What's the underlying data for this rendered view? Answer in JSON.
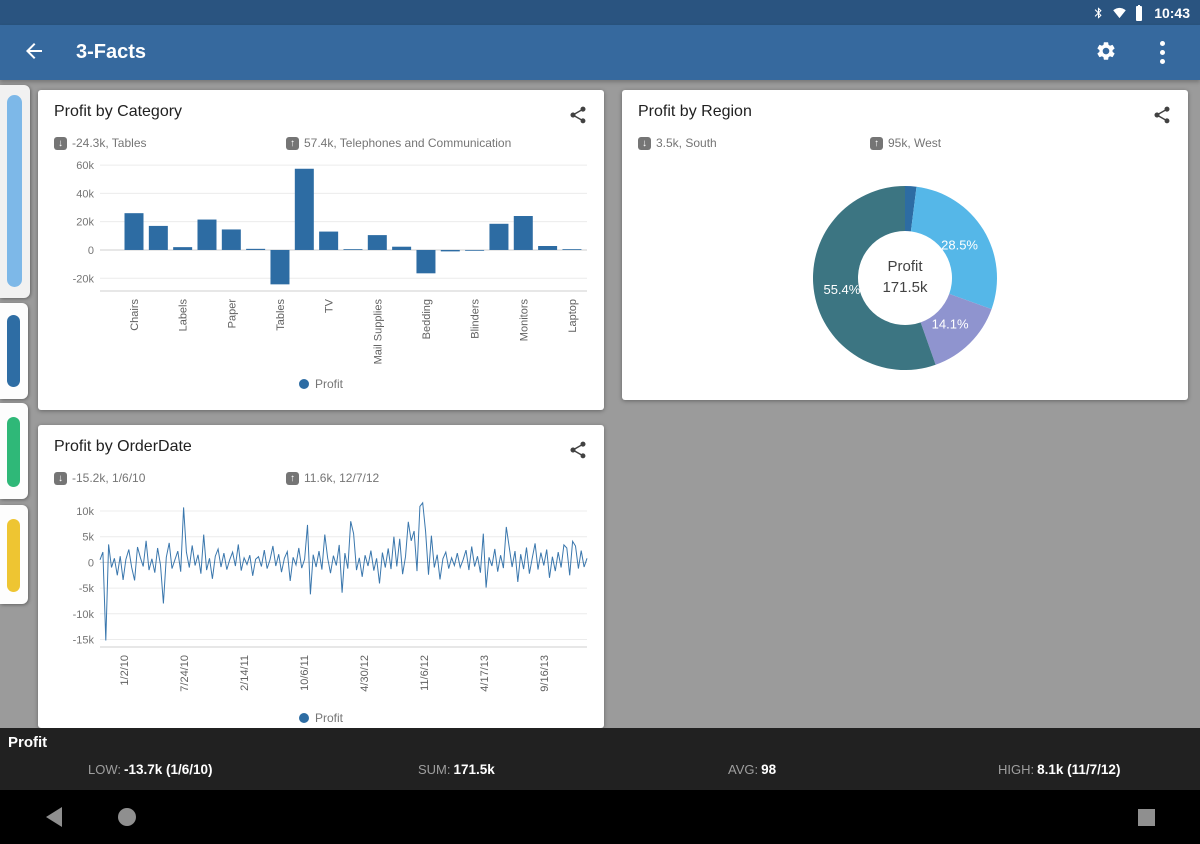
{
  "colors": {
    "primary": "#36699e",
    "primary_dark": "#2a5480",
    "background": "#9b9b9b",
    "card": "#ffffff",
    "bar": "#2d6ca3",
    "line": "#3a77ad",
    "panel": "#212121",
    "nav": "#000000",
    "sidebar_active_pill": "#7db8e8",
    "sidebar_pill_blue": "#2e6da4",
    "sidebar_pill_green": "#2fb878",
    "sidebar_pill_yellow": "#eec532",
    "donut_lightblue": "#55b7e8",
    "donut_purple": "#8f94cf",
    "donut_teal": "#3c7582"
  },
  "status_bar": {
    "time": "10:43"
  },
  "app_bar": {
    "title": "3-Facts"
  },
  "cards": [
    {
      "title": "Profit by Category",
      "low": "-24.3k, Tables",
      "high": "57.4k, Telephones and Communication",
      "legend": "Profit"
    },
    {
      "title": "Profit by Region",
      "low": "3.5k, South",
      "high": "95k, West",
      "center_label": "Profit",
      "center_value": "171.5k"
    },
    {
      "title": "Profit by OrderDate",
      "low": "-15.2k, 1/6/10",
      "high": "11.6k, 12/7/12",
      "legend": "Profit"
    }
  ],
  "summary": {
    "title": "Profit",
    "stats": [
      {
        "label": "LOW:",
        "value": "-13.7k (1/6/10)"
      },
      {
        "label": "SUM:",
        "value": "171.5k"
      },
      {
        "label": "AVG:",
        "value": "98"
      },
      {
        "label": "HIGH:",
        "value": "8.1k (11/7/12)"
      }
    ]
  },
  "chart_data": [
    {
      "type": "bar",
      "title": "Profit by Category",
      "series": "Profit",
      "unit": "k",
      "color": "#2d6ca3",
      "ylim": [
        -29,
        65
      ],
      "y_ticks": [
        {
          "v": 60,
          "label": "60k"
        },
        {
          "v": 40,
          "label": "40k"
        },
        {
          "v": 20,
          "label": "20k"
        },
        {
          "v": 0,
          "label": "0"
        },
        {
          "v": -20,
          "label": "-20k"
        }
      ],
      "bars": [
        {
          "label": "Chairs",
          "value": 26
        },
        {
          "label": "",
          "value": 17
        },
        {
          "label": "Labels",
          "value": 2
        },
        {
          "label": "",
          "value": 21.5
        },
        {
          "label": "Paper",
          "value": 14.5
        },
        {
          "label": "",
          "value": 0.8
        },
        {
          "label": "Tables",
          "value": -24.3
        },
        {
          "label": "",
          "value": 57.4
        },
        {
          "label": "TV",
          "value": 13
        },
        {
          "label": "",
          "value": 0.4
        },
        {
          "label": "Mail Supplies",
          "value": 10.5
        },
        {
          "label": "",
          "value": 2.3
        },
        {
          "label": "Bedding",
          "value": -16.5
        },
        {
          "label": "",
          "value": -1
        },
        {
          "label": "Blinders",
          "value": -0.4
        },
        {
          "label": "",
          "value": 18.5
        },
        {
          "label": "Monitors",
          "value": 24
        },
        {
          "label": "",
          "value": 2.8
        },
        {
          "label": "Laptop",
          "value": 0.2
        }
      ],
      "annotations": {
        "min": "-24.3k, Tables",
        "max": "57.4k, Telephones and Communication"
      }
    },
    {
      "type": "donut",
      "title": "Profit by Region",
      "center_label": "Profit",
      "center_value": "171.5k",
      "slices": [
        {
          "label": "",
          "pct": 2,
          "color": "#2d6ca3"
        },
        {
          "label": "28.5%",
          "pct": 28.5,
          "color": "#55b7e8"
        },
        {
          "label": "14.1%",
          "pct": 14.1,
          "color": "#8f94cf"
        },
        {
          "label": "55.4%",
          "pct": 55.4,
          "color": "#3c7582"
        }
      ],
      "annotations": {
        "min": "3.5k, South",
        "max": "95k, West"
      }
    },
    {
      "type": "line",
      "title": "Profit by OrderDate",
      "series": "Profit",
      "unit": "k",
      "color": "#3a77ad",
      "ylim": [
        -16.5,
        12.5
      ],
      "y_ticks": [
        {
          "v": 10,
          "label": "10k"
        },
        {
          "v": 5,
          "label": "5k"
        },
        {
          "v": 0,
          "label": "0"
        },
        {
          "v": -5,
          "label": "-5k"
        },
        {
          "v": -10,
          "label": "-10k"
        },
        {
          "v": -15,
          "label": "-15k"
        }
      ],
      "x_ticks": [
        "1/2/10",
        "7/24/10",
        "2/14/11",
        "10/6/11",
        "4/30/12",
        "11/6/12",
        "4/17/13",
        "9/16/13"
      ],
      "values": [
        0.5,
        2.0,
        -15.2,
        3.5,
        -1.0,
        0.8,
        -2.5,
        1.2,
        -3.4,
        0.6,
        2.5,
        -1.0,
        -3.5,
        3.0,
        1.0,
        -0.8,
        4.2,
        -1.5,
        0.7,
        -2.0,
        2.8,
        -0.5,
        -8.0,
        1.0,
        3.8,
        -1.2,
        0.5,
        2.2,
        -1.8,
        10.7,
        2.0,
        -1.0,
        3.3,
        -0.6,
        1.5,
        -2.2,
        5.4,
        -1.5,
        0.8,
        -3.2,
        1.2,
        2.6,
        -0.9,
        1.8,
        -1.4,
        0.5,
        2.0,
        -0.7,
        3.5,
        -1.6,
        0.9,
        -0.4,
        1.4,
        -2.6,
        0.6,
        1.1,
        -0.8,
        2.4,
        -1.2,
        0.5,
        3.2,
        -0.7,
        1.6,
        -1.9,
        0.8,
        2.1,
        -3.6,
        1.0,
        -0.5,
        2.8,
        -1.1,
        0.6,
        7.3,
        -6.2,
        1.5,
        -0.9,
        2.2,
        -1.4,
        5.4,
        0.8,
        -2.1,
        1.3,
        -0.6,
        3.4,
        -5.9,
        1.8,
        -1.2,
        8.0,
        5.6,
        -1.5,
        0.9,
        -2.8,
        1.4,
        -0.7,
        2.3,
        -1.6,
        0.8,
        -4.1,
        1.9,
        -1.0,
        2.7,
        -1.3,
        5.0,
        -0.8,
        4.6,
        -2.3,
        1.1,
        7.9,
        4.2,
        6.1,
        -1.7,
        10.9,
        11.6,
        6.0,
        -2.4,
        5.2,
        -1.0,
        1.5,
        -3.3,
        0.7,
        2.0,
        -1.2,
        0.9,
        -0.6,
        1.8,
        -1.0,
        0.5,
        2.4,
        -1.5,
        3.1,
        -0.8,
        1.2,
        -2.0,
        5.6,
        -4.9,
        1.0,
        -0.7,
        2.6,
        -1.8,
        1.4,
        -1.1,
        6.9,
        3.0,
        -0.9,
        2.2,
        -3.8,
        1.6,
        -1.3,
        2.9,
        -2.2,
        0.8,
        3.7,
        -1.4,
        1.9,
        -0.6,
        2.5,
        -3.0,
        1.1,
        -1.7,
        2.0,
        -1.0,
        3.4,
        2.8,
        -2.5,
        4.1,
        3.2,
        -1.2,
        2.3,
        -0.9,
        0.8
      ],
      "annotations": {
        "min": "-15.2k, 1/6/10",
        "max": "11.6k, 12/7/12"
      }
    }
  ]
}
